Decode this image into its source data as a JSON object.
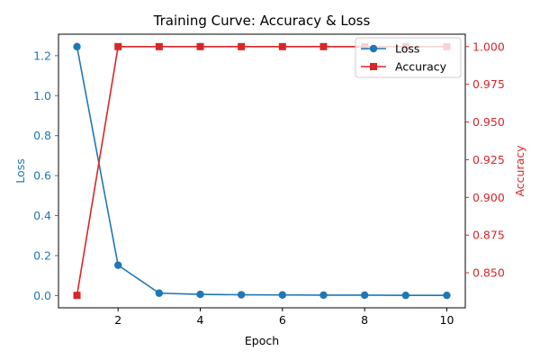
{
  "chart_data": {
    "type": "line",
    "title": "Training Curve: Accuracy & Loss",
    "xlabel": "Epoch",
    "x": [
      1,
      2,
      3,
      4,
      5,
      6,
      7,
      8,
      9,
      10
    ],
    "xlim": [
      0.55,
      10.45
    ],
    "xticks": [
      2,
      4,
      6,
      8,
      10
    ],
    "series": [
      {
        "name": "Loss",
        "axis": "left",
        "color": "#1f77b4",
        "marker": "circle",
        "values": [
          1.245,
          0.152,
          0.012,
          0.006,
          0.004,
          0.003,
          0.002,
          0.002,
          0.001,
          0.001
        ]
      },
      {
        "name": "Accuracy",
        "axis": "right",
        "color": "#d62728",
        "marker": "square",
        "values": [
          0.835,
          1.0,
          1.0,
          1.0,
          1.0,
          1.0,
          1.0,
          1.0,
          1.0,
          1.0
        ]
      }
    ],
    "left_axis": {
      "label": "Loss",
      "color": "#1f77b4",
      "ylim": [
        -0.0612,
        1.3074
      ],
      "ticks": [
        0.0,
        0.2,
        0.4,
        0.6,
        0.8,
        1.0,
        1.2
      ],
      "tick_labels": [
        "0.0",
        "0.2",
        "0.4",
        "0.6",
        "0.8",
        "1.0",
        "1.2"
      ]
    },
    "right_axis": {
      "label": "Accuracy",
      "color": "#d62728",
      "ylim": [
        0.82675,
        1.00825
      ],
      "ticks": [
        0.85,
        0.875,
        0.9,
        0.925,
        0.95,
        0.975,
        1.0
      ],
      "tick_labels": [
        "0.850",
        "0.875",
        "0.900",
        "0.925",
        "0.950",
        "0.975",
        "1.000"
      ]
    },
    "grid": false,
    "legend": "upper right"
  }
}
